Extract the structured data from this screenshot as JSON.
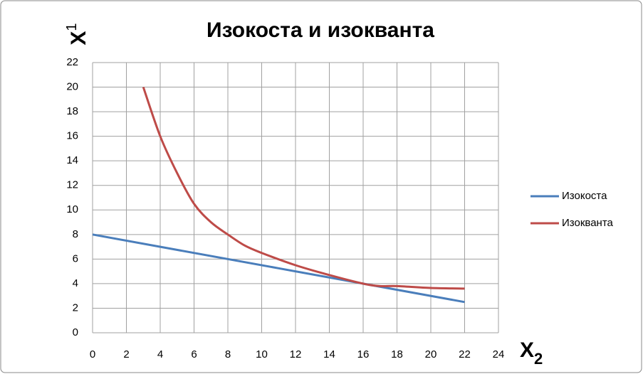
{
  "chart_data": {
    "type": "line",
    "title": "Изокоста и изокванта",
    "x_axis_label": {
      "text": "X",
      "subscript": "2"
    },
    "y_axis_label": {
      "text": "X",
      "subscript": "1"
    },
    "series": [
      {
        "name": "Изокоста",
        "color": "#4a7ebb",
        "x": [
          0,
          22
        ],
        "values": [
          8,
          2.5
        ]
      },
      {
        "name": "Изокванта",
        "color": "#be4b48",
        "x": [
          3,
          4,
          5,
          6,
          7,
          8,
          9,
          10,
          12,
          14,
          16,
          17,
          18,
          20,
          22
        ],
        "values": [
          20,
          16,
          13,
          10.5,
          9,
          8,
          7.1,
          6.5,
          5.5,
          4.7,
          4,
          3.8,
          3.8,
          3.65,
          3.6
        ]
      }
    ],
    "xlim": [
      0,
      24
    ],
    "xticks": [
      0,
      2,
      4,
      6,
      8,
      10,
      12,
      14,
      16,
      18,
      20,
      22,
      24
    ],
    "ylim": [
      0,
      22
    ],
    "yticks": [
      0,
      2,
      4,
      6,
      8,
      10,
      12,
      14,
      16,
      18,
      20,
      22
    ],
    "grid": true,
    "legend": "right"
  }
}
